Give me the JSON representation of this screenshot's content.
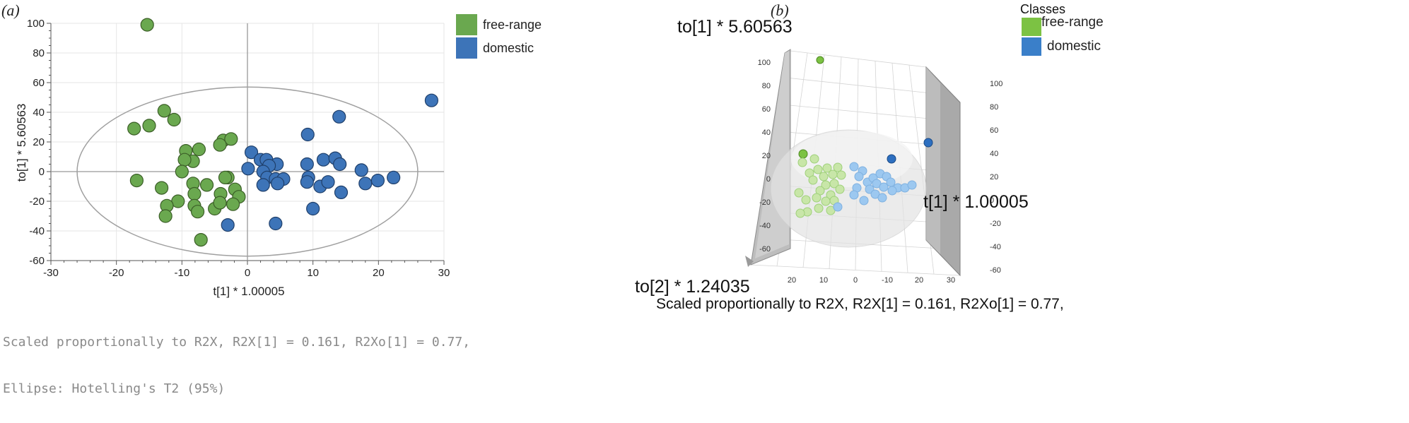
{
  "panel_a": {
    "label": "(a)",
    "footnote_line1": "Scaled proportionally to R2X, R2X[1] = 0.161, R2Xo[1] = 0.77,",
    "footnote_line2": "Ellipse: Hotelling's T2 (95%)",
    "legend": [
      {
        "name": "free-range",
        "color": "#6aa84f"
      },
      {
        "name": "domestic",
        "color": "#3d74b8"
      }
    ]
  },
  "panel_b": {
    "label": "(b)",
    "legend_title": "Classes",
    "legend": [
      {
        "name": "free-range",
        "color": "#7cc243"
      },
      {
        "name": "domestic",
        "color": "#3a7fc9"
      }
    ],
    "axis_to1": "to[1] * 5.60563",
    "axis_t1": "t[1] * 1.00005",
    "axis_to2": "to[2] * 1.24035",
    "footnote": "Scaled proportionally to R2X, R2X[1] = 0.161, R2Xo[1] = 0.77,",
    "left_wall_ticks": [
      "100",
      "80",
      "60",
      "40",
      "20",
      "0",
      "-20",
      "-40",
      "-60"
    ],
    "right_wall_ticks": [
      "100",
      "80",
      "60",
      "40",
      "20",
      "0",
      "-20",
      "-40",
      "-60"
    ],
    "bottom_ticks": [
      "20",
      "10",
      "0",
      "-10",
      "20",
      "30"
    ],
    "colors": {
      "free_range_light": "#c8e6a8",
      "domestic_light": "#9cc8f0"
    }
  },
  "chart_data": [
    {
      "type": "scatter",
      "title": "",
      "xlabel": "t[1] * 1.00005",
      "ylabel": "to[1] * 5.60563",
      "xlim": [
        -30,
        30
      ],
      "ylim": [
        -60,
        100
      ],
      "xticks": [
        -30,
        -20,
        -10,
        0,
        10,
        20,
        30
      ],
      "yticks": [
        -60,
        -40,
        -20,
        0,
        20,
        40,
        60,
        80,
        100
      ],
      "grid": true,
      "legend_position": "right",
      "ellipse": {
        "center": [
          0,
          0
        ],
        "semi_axes": [
          26,
          57
        ],
        "label": "Hotelling's T2 (95%)"
      },
      "series": [
        {
          "name": "free-range",
          "color": "#6aa84f",
          "points": [
            [
              -15.3,
              99
            ],
            [
              -12.7,
              41
            ],
            [
              -15,
              31
            ],
            [
              -17.3,
              29
            ],
            [
              -11.2,
              35
            ],
            [
              -3.7,
              21
            ],
            [
              -2.5,
              22
            ],
            [
              -9.4,
              14
            ],
            [
              -7.4,
              15
            ],
            [
              -8.3,
              7
            ],
            [
              -4.2,
              18
            ],
            [
              -9.6,
              8
            ],
            [
              -10,
              0
            ],
            [
              -3,
              -4
            ],
            [
              -3.4,
              -4
            ],
            [
              -16.9,
              -6
            ],
            [
              -13.1,
              -11
            ],
            [
              -8.3,
              -8
            ],
            [
              -6.2,
              -9
            ],
            [
              -1.9,
              -12
            ],
            [
              -1.3,
              -17
            ],
            [
              -4.1,
              -15
            ],
            [
              -8.1,
              -15
            ],
            [
              -10.6,
              -20
            ],
            [
              -8.1,
              -23
            ],
            [
              -7.6,
              -27
            ],
            [
              -5,
              -25
            ],
            [
              -4.2,
              -21
            ],
            [
              -2.2,
              -22
            ],
            [
              -12.3,
              -23
            ],
            [
              -12.5,
              -30
            ],
            [
              -7.1,
              -46
            ]
          ]
        },
        {
          "name": "domestic",
          "color": "#3d74b8",
          "points": [
            [
              28.1,
              48
            ],
            [
              14,
              37
            ],
            [
              9.2,
              25
            ],
            [
              0.6,
              13
            ],
            [
              2,
              8
            ],
            [
              2.9,
              8
            ],
            [
              4.5,
              5
            ],
            [
              3.3,
              4
            ],
            [
              9.1,
              5
            ],
            [
              11.6,
              8
            ],
            [
              13.4,
              9
            ],
            [
              14.1,
              5
            ],
            [
              17.4,
              1
            ],
            [
              0.1,
              2
            ],
            [
              2.4,
              0
            ],
            [
              3,
              -4
            ],
            [
              4.3,
              -5
            ],
            [
              5.5,
              -5
            ],
            [
              2.4,
              -9
            ],
            [
              4.6,
              -8
            ],
            [
              9.3,
              -4
            ],
            [
              9.1,
              -7
            ],
            [
              11.1,
              -10
            ],
            [
              12.3,
              -7
            ],
            [
              14.3,
              -14
            ],
            [
              18,
              -8
            ],
            [
              19.9,
              -6
            ],
            [
              22.3,
              -4
            ],
            [
              10,
              -25
            ],
            [
              -3,
              -36
            ],
            [
              4.3,
              -35
            ]
          ]
        }
      ]
    },
    {
      "type": "scatter",
      "title": "",
      "xlabel": "t[1] * 1.00005",
      "ylabel": "to[1] * 5.60563",
      "zlabel": "to[2] * 1.24035",
      "legend_title": "Classes",
      "series": [
        {
          "name": "free-range",
          "color": "#7cc243"
        },
        {
          "name": "domestic",
          "color": "#3a7fc9"
        }
      ]
    }
  ]
}
